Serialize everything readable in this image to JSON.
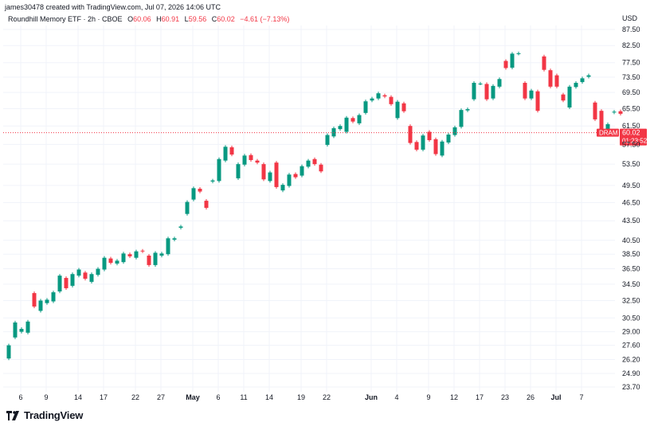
{
  "header": {
    "credit": "james30478 created with TradingView.com, Jul 07, 2026 14:06 UTC",
    "title": "Roundhill Memory ETF · 2h · CBOE",
    "o_label": "O",
    "o": "60.06",
    "h_label": "H",
    "h": "60.91",
    "l_label": "L",
    "l": "59.56",
    "c_label": "C",
    "c": "60.02",
    "change": "−4.61 (−7.13%)"
  },
  "brand": {
    "name": "TradingView"
  },
  "colors": {
    "up": "#089981",
    "down": "#f23645",
    "grid": "#f0f3fa",
    "text": "#131722"
  },
  "chart_data": {
    "type": "candlestick",
    "currency": "USD",
    "y_ticks": [
      "87.50",
      "82.50",
      "77.50",
      "73.50",
      "69.50",
      "65.50",
      "61.50",
      "57.50",
      "53.50",
      "49.50",
      "46.50",
      "43.50",
      "40.50",
      "38.50",
      "36.50",
      "34.50",
      "32.50",
      "30.50",
      "29.00",
      "27.60",
      "26.20",
      "24.90",
      "23.70"
    ],
    "y_scale": "log",
    "x_ticks": [
      {
        "label": "6",
        "idx": 1
      },
      {
        "label": "9",
        "idx": 5
      },
      {
        "label": "14",
        "idx": 10
      },
      {
        "label": "17",
        "idx": 14
      },
      {
        "label": "22",
        "idx": 19
      },
      {
        "label": "27",
        "idx": 23
      },
      {
        "label": "May",
        "idx": 28,
        "bold": true
      },
      {
        "label": "6",
        "idx": 32
      },
      {
        "label": "11",
        "idx": 36
      },
      {
        "label": "14",
        "idx": 40
      },
      {
        "label": "19",
        "idx": 45
      },
      {
        "label": "22",
        "idx": 49
      },
      {
        "label": "Jun",
        "idx": 56,
        "bold": true
      },
      {
        "label": "4",
        "idx": 60
      },
      {
        "label": "9",
        "idx": 65
      },
      {
        "label": "12",
        "idx": 69
      },
      {
        "label": "17",
        "idx": 73
      },
      {
        "label": "23",
        "idx": 77
      },
      {
        "label": "26",
        "idx": 81
      },
      {
        "label": "Jul",
        "idx": 85,
        "bold": true
      },
      {
        "label": "7",
        "idx": 89
      }
    ],
    "last_price": {
      "symbol": "DRAM",
      "value": "60.02",
      "countdown": "01:23:52"
    },
    "candles": [
      [
        26.3,
        27.6
      ],
      [
        28.4,
        30.0
      ],
      [
        29.0,
        29.3
      ],
      [
        28.9,
        30.1
      ],
      [
        33.4,
        31.8
      ],
      [
        31.3,
        32.5
      ],
      [
        32.2,
        32.6
      ],
      [
        32.4,
        33.5
      ],
      [
        33.6,
        35.6
      ],
      [
        35.3,
        34.0
      ],
      [
        34.3,
        35.8
      ],
      [
        35.6,
        36.4
      ],
      [
        36.0,
        35.2
      ],
      [
        34.8,
        35.8
      ],
      [
        35.7,
        36.5
      ],
      [
        36.4,
        38.0
      ],
      [
        37.9,
        37.3
      ],
      [
        37.2,
        37.6
      ],
      [
        37.4,
        38.6
      ],
      [
        38.5,
        38.2
      ],
      [
        38.0,
        38.9
      ],
      [
        39.0,
        38.9
      ],
      [
        38.3,
        37.0
      ],
      [
        37.0,
        38.7
      ],
      [
        38.3,
        38.6
      ],
      [
        38.5,
        40.8
      ],
      [
        40.6,
        40.8
      ],
      [
        42.4,
        42.6
      ],
      [
        44.6,
        46.6
      ],
      [
        47.0,
        49.0
      ],
      [
        48.9,
        48.4
      ],
      [
        46.8,
        45.6
      ],
      [
        50.2,
        50.4
      ],
      [
        50.3,
        54.5
      ],
      [
        54.2,
        57.0
      ],
      [
        56.9,
        55.4
      ],
      [
        50.8,
        53.5
      ],
      [
        53.4,
        55.2
      ],
      [
        55.3,
        54.3
      ],
      [
        54.2,
        53.8
      ],
      [
        53.5,
        50.6
      ],
      [
        50.3,
        51.9
      ],
      [
        53.8,
        49.2
      ],
      [
        48.6,
        49.6
      ],
      [
        49.4,
        51.5
      ],
      [
        51.6,
        51.0
      ],
      [
        51.3,
        53.1
      ],
      [
        53.0,
        54.2
      ],
      [
        54.5,
        53.5
      ],
      [
        53.4,
        52.1
      ],
      [
        57.4,
        59.5
      ],
      [
        59.2,
        61.0
      ],
      [
        60.8,
        61.5
      ],
      [
        60.2,
        63.4
      ],
      [
        63.3,
        62.5
      ],
      [
        62.1,
        64.0
      ],
      [
        64.5,
        67.3
      ],
      [
        67.5,
        68.0
      ],
      [
        68.0,
        69.3
      ],
      [
        68.8,
        68.5
      ],
      [
        68.4,
        66.6
      ],
      [
        63.3,
        67.2
      ],
      [
        66.8,
        64.9
      ],
      [
        61.5,
        57.8
      ],
      [
        58.0,
        56.4
      ],
      [
        56.4,
        59.4
      ],
      [
        60.2,
        58.4
      ],
      [
        58.6,
        55.5
      ],
      [
        55.2,
        58.1
      ],
      [
        57.9,
        59.6
      ],
      [
        59.5,
        61.2
      ],
      [
        61.3,
        65.2
      ],
      [
        65.1,
        65.4
      ],
      [
        67.8,
        72.0
      ],
      [
        71.8,
        71.8
      ],
      [
        71.7,
        67.8
      ],
      [
        68.0,
        71.2
      ],
      [
        71.0,
        73.0
      ],
      [
        78.0,
        76.0
      ],
      [
        76.1,
        80.1
      ],
      [
        80.1,
        80.2
      ],
      [
        72.0,
        68.0
      ],
      [
        68.0,
        70.0
      ],
      [
        69.8,
        65.0
      ],
      [
        79.3,
        75.5
      ],
      [
        75.4,
        71.0
      ],
      [
        74.0,
        71.0
      ],
      [
        69.0,
        67.5
      ],
      [
        65.8,
        71.0
      ],
      [
        70.9,
        72.0
      ],
      [
        72.2,
        73.2
      ],
      [
        73.6,
        74.0
      ],
      [
        67.0,
        63.0
      ],
      [
        65.0,
        60.6
      ],
      [
        60.4,
        61.9
      ],
      [
        64.6,
        64.8
      ],
      [
        64.9,
        64.3
      ],
      [
        60.1,
        60.0
      ]
    ]
  }
}
